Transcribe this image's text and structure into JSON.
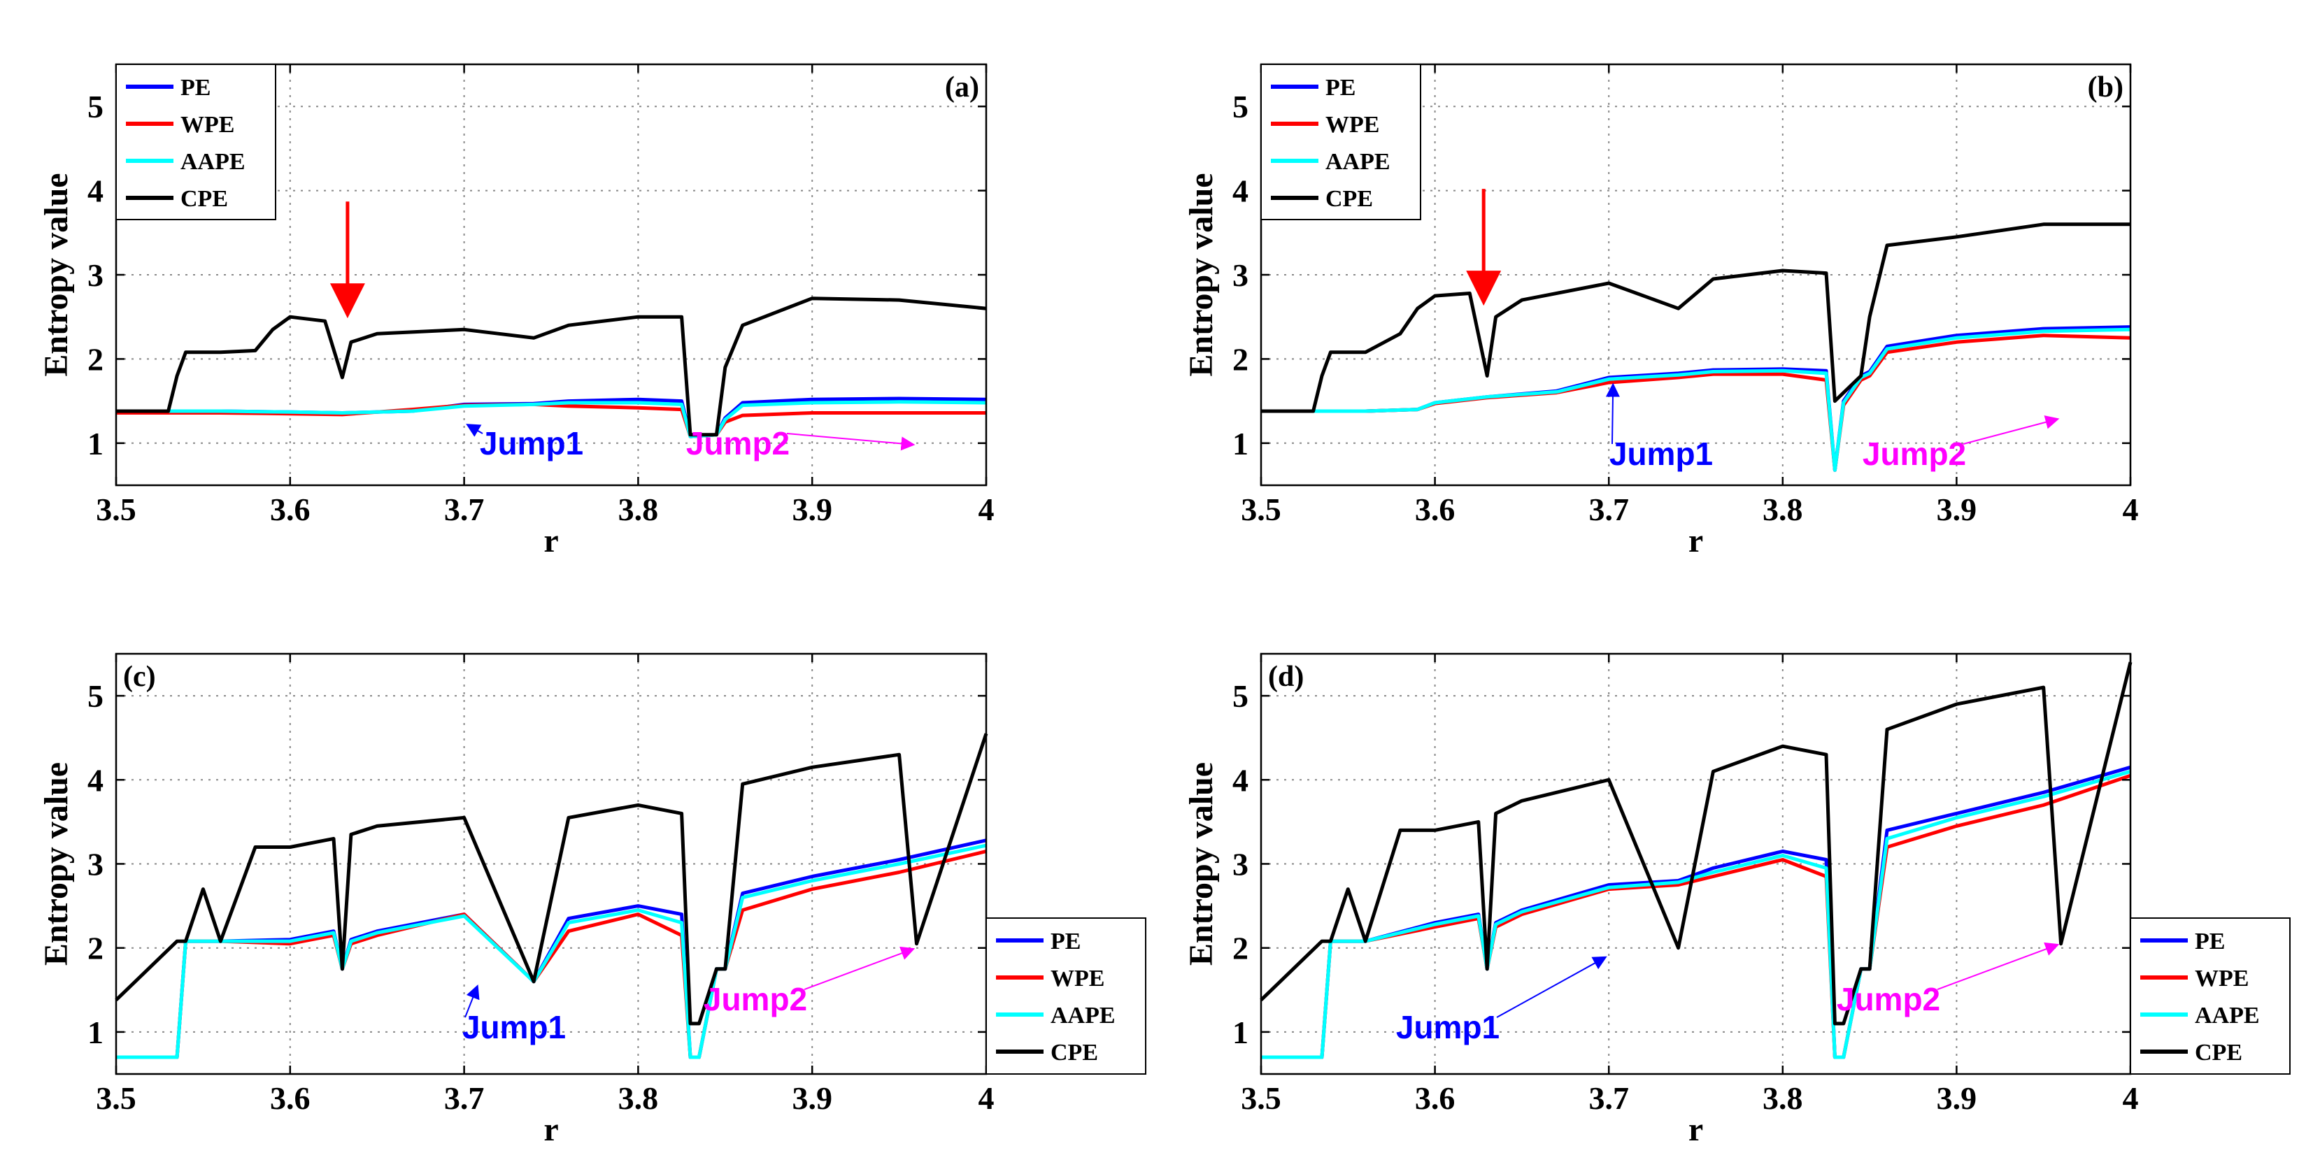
{
  "chart_data": [
    {
      "type": "line",
      "panel_label": "(a)",
      "xlabel": "r",
      "ylabel": "Entropy value",
      "xlim": [
        3.5,
        4
      ],
      "ylim": [
        0.5,
        5.5
      ],
      "xticks": [
        "3.5",
        "3.6",
        "3.7",
        "3.8",
        "3.9",
        "4"
      ],
      "yticks": [
        "1",
        "2",
        "3",
        "4",
        "5"
      ],
      "grid": true,
      "legend_position": "top-left",
      "series": [
        {
          "name": "PE",
          "color": "#0000ff",
          "x": [
            3.5,
            3.53,
            3.56,
            3.6,
            3.63,
            3.67,
            3.7,
            3.74,
            3.76,
            3.8,
            3.825,
            3.83,
            3.845,
            3.85,
            3.86,
            3.9,
            3.95,
            4.0
          ],
          "y": [
            1.38,
            1.38,
            1.38,
            1.37,
            1.36,
            1.38,
            1.46,
            1.47,
            1.5,
            1.52,
            1.5,
            1.08,
            1.1,
            1.3,
            1.48,
            1.52,
            1.53,
            1.52
          ]
        },
        {
          "name": "WPE",
          "color": "#ff0000",
          "x": [
            3.5,
            3.53,
            3.56,
            3.6,
            3.63,
            3.67,
            3.7,
            3.74,
            3.76,
            3.8,
            3.825,
            3.83,
            3.845,
            3.85,
            3.86,
            3.9,
            3.95,
            4.0
          ],
          "y": [
            1.36,
            1.36,
            1.36,
            1.35,
            1.34,
            1.4,
            1.45,
            1.46,
            1.44,
            1.42,
            1.4,
            1.08,
            1.1,
            1.25,
            1.33,
            1.36,
            1.36,
            1.36
          ]
        },
        {
          "name": "AAPE",
          "color": "#00ffff",
          "x": [
            3.5,
            3.53,
            3.56,
            3.6,
            3.63,
            3.67,
            3.7,
            3.74,
            3.76,
            3.8,
            3.825,
            3.83,
            3.845,
            3.85,
            3.86,
            3.9,
            3.95,
            4.0
          ],
          "y": [
            1.38,
            1.38,
            1.38,
            1.37,
            1.36,
            1.38,
            1.44,
            1.46,
            1.48,
            1.48,
            1.46,
            1.08,
            1.1,
            1.28,
            1.45,
            1.48,
            1.49,
            1.48
          ]
        },
        {
          "name": "CPE",
          "color": "#000000",
          "x": [
            3.5,
            3.53,
            3.535,
            3.54,
            3.56,
            3.58,
            3.59,
            3.6,
            3.62,
            3.63,
            3.635,
            3.65,
            3.7,
            3.74,
            3.76,
            3.8,
            3.825,
            3.83,
            3.845,
            3.85,
            3.86,
            3.9,
            3.95,
            4.0
          ],
          "y": [
            1.38,
            1.38,
            1.8,
            2.08,
            2.08,
            2.1,
            2.35,
            2.5,
            2.45,
            1.78,
            2.2,
            2.3,
            2.35,
            2.25,
            2.4,
            2.5,
            2.5,
            1.1,
            1.1,
            1.9,
            2.4,
            2.72,
            2.7,
            2.6
          ]
        }
      ],
      "annotations": [
        {
          "text": "Jump1",
          "color": "#0000ff",
          "x": 3.7,
          "y": 1.28
        },
        {
          "text": "Jump2",
          "color": "#ff00ff",
          "x": 3.96,
          "y": 1.05
        },
        {
          "text": "red-arrow",
          "color": "#ff0000",
          "x": 3.633,
          "y": 2.5
        }
      ]
    },
    {
      "type": "line",
      "panel_label": "(b)",
      "xlabel": "r",
      "ylabel": "Entropy value",
      "xlim": [
        3.5,
        4
      ],
      "ylim": [
        0.5,
        5.5
      ],
      "xticks": [
        "3.5",
        "3.6",
        "3.7",
        "3.8",
        "3.9",
        "4"
      ],
      "yticks": [
        "1",
        "2",
        "3",
        "4",
        "5"
      ],
      "grid": true,
      "legend_position": "top-left",
      "series": [
        {
          "name": "PE",
          "color": "#0000ff",
          "x": [
            3.5,
            3.53,
            3.56,
            3.59,
            3.6,
            3.63,
            3.67,
            3.7,
            3.74,
            3.76,
            3.8,
            3.825,
            3.83,
            3.835,
            3.845,
            3.85,
            3.86,
            3.9,
            3.95,
            4.0
          ],
          "y": [
            1.38,
            1.38,
            1.38,
            1.4,
            1.48,
            1.55,
            1.62,
            1.78,
            1.83,
            1.87,
            1.88,
            1.86,
            0.68,
            1.5,
            1.8,
            1.85,
            2.15,
            2.28,
            2.36,
            2.38
          ]
        },
        {
          "name": "WPE",
          "color": "#ff0000",
          "x": [
            3.5,
            3.53,
            3.56,
            3.59,
            3.6,
            3.63,
            3.67,
            3.7,
            3.74,
            3.76,
            3.8,
            3.825,
            3.83,
            3.835,
            3.845,
            3.85,
            3.86,
            3.9,
            3.95,
            4.0
          ],
          "y": [
            1.38,
            1.38,
            1.38,
            1.4,
            1.47,
            1.54,
            1.6,
            1.72,
            1.78,
            1.82,
            1.82,
            1.75,
            0.68,
            1.45,
            1.75,
            1.8,
            2.08,
            2.2,
            2.28,
            2.25
          ]
        },
        {
          "name": "AAPE",
          "color": "#00ffff",
          "x": [
            3.5,
            3.53,
            3.56,
            3.59,
            3.6,
            3.63,
            3.67,
            3.7,
            3.74,
            3.76,
            3.8,
            3.825,
            3.83,
            3.835,
            3.845,
            3.85,
            3.86,
            3.9,
            3.95,
            4.0
          ],
          "y": [
            1.38,
            1.38,
            1.38,
            1.4,
            1.48,
            1.55,
            1.61,
            1.76,
            1.81,
            1.85,
            1.86,
            1.83,
            0.68,
            1.48,
            1.78,
            1.83,
            2.12,
            2.25,
            2.33,
            2.35
          ]
        },
        {
          "name": "CPE",
          "color": "#000000",
          "x": [
            3.5,
            3.53,
            3.535,
            3.54,
            3.56,
            3.58,
            3.59,
            3.6,
            3.62,
            3.63,
            3.635,
            3.65,
            3.7,
            3.74,
            3.76,
            3.8,
            3.825,
            3.83,
            3.845,
            3.85,
            3.86,
            3.9,
            3.95,
            4.0
          ],
          "y": [
            1.38,
            1.38,
            1.8,
            2.08,
            2.08,
            2.3,
            2.6,
            2.75,
            2.78,
            1.8,
            2.5,
            2.7,
            2.9,
            2.6,
            2.95,
            3.05,
            3.02,
            1.5,
            1.8,
            2.5,
            3.35,
            3.45,
            3.6,
            3.6
          ]
        }
      ],
      "annotations": [
        {
          "text": "Jump1",
          "color": "#0000ff",
          "x": 3.7,
          "y": 1.75
        },
        {
          "text": "Jump2",
          "color": "#ff00ff",
          "x": 3.96,
          "y": 1.35
        },
        {
          "text": "red-arrow",
          "color": "#ff0000",
          "x": 3.628,
          "y": 2.65
        }
      ]
    },
    {
      "type": "line",
      "panel_label": "(c)",
      "xlabel": "r",
      "ylabel": "Entropy value",
      "xlim": [
        3.5,
        4
      ],
      "ylim": [
        0.5,
        5.5
      ],
      "xticks": [
        "3.5",
        "3.6",
        "3.7",
        "3.8",
        "3.9",
        "4"
      ],
      "yticks": [
        "1",
        "2",
        "3",
        "4",
        "5"
      ],
      "grid": true,
      "legend_position": "outside-right-bottom",
      "series": [
        {
          "name": "PE",
          "color": "#0000ff",
          "x": [
            3.5,
            3.535,
            3.54,
            3.56,
            3.6,
            3.625,
            3.63,
            3.635,
            3.65,
            3.7,
            3.74,
            3.76,
            3.8,
            3.825,
            3.83,
            3.835,
            3.845,
            3.85,
            3.86,
            3.9,
            3.95,
            4.0
          ],
          "y": [
            0.7,
            0.7,
            2.08,
            2.08,
            2.1,
            2.2,
            1.75,
            2.1,
            2.2,
            2.4,
            1.6,
            2.35,
            2.5,
            2.4,
            0.7,
            0.7,
            1.75,
            1.75,
            2.65,
            2.85,
            3.05,
            3.28
          ]
        },
        {
          "name": "WPE",
          "color": "#ff0000",
          "x": [
            3.5,
            3.535,
            3.54,
            3.56,
            3.6,
            3.625,
            3.63,
            3.635,
            3.65,
            3.7,
            3.74,
            3.76,
            3.8,
            3.825,
            3.83,
            3.835,
            3.845,
            3.85,
            3.86,
            3.9,
            3.95,
            4.0
          ],
          "y": [
            0.7,
            0.7,
            2.08,
            2.08,
            2.05,
            2.15,
            1.75,
            2.05,
            2.15,
            2.4,
            1.6,
            2.2,
            2.4,
            2.15,
            0.7,
            0.7,
            1.75,
            1.75,
            2.45,
            2.7,
            2.9,
            3.15
          ]
        },
        {
          "name": "AAPE",
          "color": "#00ffff",
          "x": [
            3.5,
            3.535,
            3.54,
            3.56,
            3.6,
            3.625,
            3.63,
            3.635,
            3.65,
            3.7,
            3.74,
            3.76,
            3.8,
            3.825,
            3.83,
            3.835,
            3.845,
            3.85,
            3.86,
            3.9,
            3.95,
            4.0
          ],
          "y": [
            0.7,
            0.7,
            2.08,
            2.08,
            2.08,
            2.18,
            1.75,
            2.08,
            2.18,
            2.38,
            1.6,
            2.3,
            2.45,
            2.3,
            0.7,
            0.7,
            1.75,
            1.75,
            2.6,
            2.8,
            3.0,
            3.22
          ]
        },
        {
          "name": "CPE",
          "color": "#000000",
          "x": [
            3.5,
            3.535,
            3.54,
            3.55,
            3.56,
            3.58,
            3.6,
            3.625,
            3.63,
            3.635,
            3.65,
            3.7,
            3.74,
            3.76,
            3.8,
            3.825,
            3.83,
            3.835,
            3.845,
            3.85,
            3.86,
            3.9,
            3.95,
            3.96,
            4.0
          ],
          "y": [
            1.38,
            2.08,
            2.08,
            2.7,
            2.08,
            3.2,
            3.2,
            3.3,
            1.75,
            3.35,
            3.45,
            3.55,
            1.6,
            3.55,
            3.7,
            3.6,
            1.1,
            1.1,
            1.75,
            1.75,
            3.95,
            4.15,
            4.3,
            2.05,
            4.55
          ]
        }
      ],
      "annotations": [
        {
          "text": "Jump1",
          "color": "#0000ff",
          "x": 3.705,
          "y": 1.6
        },
        {
          "text": "Jump2",
          "color": "#ff00ff",
          "x": 3.96,
          "y": 2.05
        }
      ]
    },
    {
      "type": "line",
      "panel_label": "(d)",
      "xlabel": "r",
      "ylabel": "Entropy value",
      "xlim": [
        3.5,
        4
      ],
      "ylim": [
        0.5,
        5.5
      ],
      "xticks": [
        "3.5",
        "3.6",
        "3.7",
        "3.8",
        "3.9",
        "4"
      ],
      "yticks": [
        "1",
        "2",
        "3",
        "4",
        "5"
      ],
      "grid": true,
      "legend_position": "outside-right-bottom",
      "series": [
        {
          "name": "PE",
          "color": "#0000ff",
          "x": [
            3.5,
            3.535,
            3.54,
            3.56,
            3.6,
            3.625,
            3.63,
            3.635,
            3.65,
            3.7,
            3.74,
            3.76,
            3.8,
            3.825,
            3.83,
            3.835,
            3.845,
            3.85,
            3.86,
            3.9,
            3.95,
            4.0
          ],
          "y": [
            0.7,
            0.7,
            2.08,
            2.08,
            2.3,
            2.4,
            1.75,
            2.3,
            2.45,
            2.75,
            2.8,
            2.95,
            3.15,
            3.05,
            0.7,
            0.7,
            1.75,
            1.75,
            3.4,
            3.6,
            3.85,
            4.15
          ]
        },
        {
          "name": "WPE",
          "color": "#ff0000",
          "x": [
            3.5,
            3.535,
            3.54,
            3.56,
            3.6,
            3.625,
            3.63,
            3.635,
            3.65,
            3.7,
            3.74,
            3.76,
            3.8,
            3.825,
            3.83,
            3.835,
            3.845,
            3.85,
            3.86,
            3.9,
            3.95,
            4.0
          ],
          "y": [
            0.7,
            0.7,
            2.08,
            2.08,
            2.25,
            2.35,
            1.75,
            2.25,
            2.4,
            2.7,
            2.75,
            2.85,
            3.05,
            2.85,
            0.7,
            0.7,
            1.75,
            1.75,
            3.2,
            3.45,
            3.7,
            4.05
          ]
        },
        {
          "name": "AAPE",
          "color": "#00ffff",
          "x": [
            3.5,
            3.535,
            3.54,
            3.56,
            3.6,
            3.625,
            3.63,
            3.635,
            3.65,
            3.7,
            3.74,
            3.76,
            3.8,
            3.825,
            3.83,
            3.835,
            3.845,
            3.85,
            3.86,
            3.9,
            3.95,
            4.0
          ],
          "y": [
            0.7,
            0.7,
            2.08,
            2.08,
            2.28,
            2.38,
            1.75,
            2.28,
            2.43,
            2.72,
            2.78,
            2.9,
            3.1,
            2.95,
            0.7,
            0.7,
            1.75,
            1.75,
            3.3,
            3.55,
            3.8,
            4.1
          ]
        },
        {
          "name": "CPE",
          "color": "#000000",
          "x": [
            3.5,
            3.535,
            3.54,
            3.55,
            3.56,
            3.58,
            3.6,
            3.625,
            3.63,
            3.635,
            3.65,
            3.7,
            3.74,
            3.76,
            3.8,
            3.825,
            3.83,
            3.835,
            3.845,
            3.85,
            3.86,
            3.9,
            3.95,
            3.96,
            4.0
          ],
          "y": [
            1.38,
            2.08,
            2.08,
            2.7,
            2.08,
            3.4,
            3.4,
            3.5,
            1.75,
            3.6,
            3.75,
            4.0,
            2.0,
            4.1,
            4.4,
            4.3,
            1.1,
            1.1,
            1.75,
            1.75,
            4.6,
            4.9,
            5.1,
            2.05,
            5.4
          ]
        }
      ],
      "annotations": [
        {
          "text": "Jump1",
          "color": "#0000ff",
          "x": 3.7,
          "y": 1.95
        },
        {
          "text": "Jump2",
          "color": "#ff00ff",
          "x": 3.96,
          "y": 2.1
        }
      ]
    }
  ]
}
